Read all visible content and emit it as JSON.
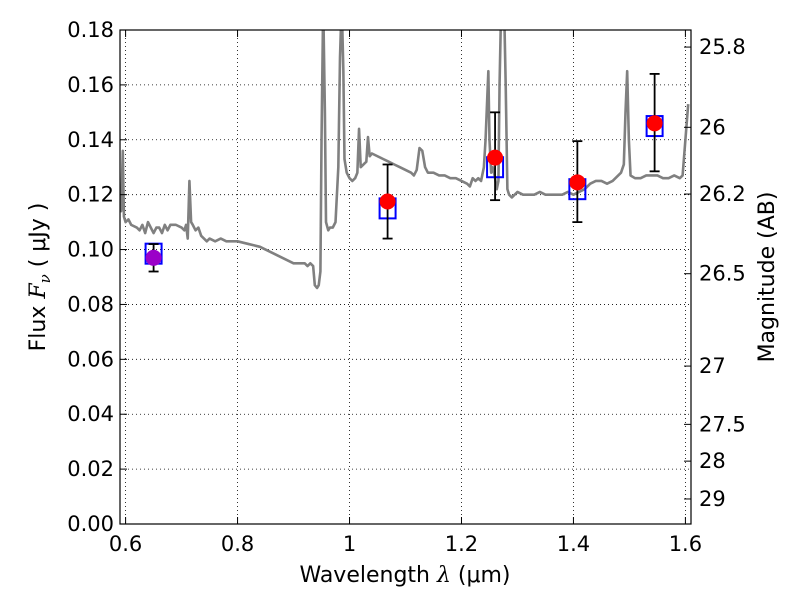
{
  "chart_data": {
    "type": "scatter",
    "xlabel": {
      "prefix": "Wavelength  ",
      "symbol": "λ",
      "unit": "(μm)"
    },
    "ylabel": {
      "prefix": "Flux  ",
      "symbol": "F",
      "subscript": "ν",
      "unit": "( μJy )"
    },
    "y2label": "Magnitude (AB)",
    "xlim": [
      0.59,
      1.61
    ],
    "ylim": [
      0.0,
      0.18
    ],
    "grid": true,
    "x_ticks": [
      0.6,
      0.8,
      1.0,
      1.2,
      1.4,
      1.6
    ],
    "x_tick_labels": [
      "0.6",
      "0.8",
      "1",
      "1.2",
      "1.4",
      "1.6"
    ],
    "y_ticks": [
      0.0,
      0.02,
      0.04,
      0.06,
      0.08,
      0.1,
      0.12,
      0.14,
      0.16,
      0.18
    ],
    "y_tick_labels": [
      "0.00",
      "0.02",
      "0.04",
      "0.06",
      "0.08",
      "0.10",
      "0.12",
      "0.14",
      "0.16",
      "0.18"
    ],
    "y2_ticks": [
      25.8,
      26,
      26.2,
      26.5,
      27,
      27.5,
      28,
      29
    ],
    "y2_tick_labels": [
      "25.8",
      "26",
      "26.2",
      "26.5",
      "27",
      "27.5",
      "28",
      "29"
    ],
    "colors": {
      "spectrum": "#808080",
      "observed": "#ff0000",
      "observed_first": "#9b00c8",
      "model": "#0000ff",
      "errorbar": "#000000"
    },
    "spectrum": [
      [
        0.59,
        0.115
      ],
      [
        0.592,
        0.114
      ],
      [
        0.595,
        0.136
      ],
      [
        0.597,
        0.112
      ],
      [
        0.6,
        0.11
      ],
      [
        0.605,
        0.111
      ],
      [
        0.61,
        0.109
      ],
      [
        0.62,
        0.108
      ],
      [
        0.625,
        0.107
      ],
      [
        0.63,
        0.109
      ],
      [
        0.635,
        0.106
      ],
      [
        0.64,
        0.11
      ],
      [
        0.645,
        0.108
      ],
      [
        0.65,
        0.106
      ],
      [
        0.655,
        0.108
      ],
      [
        0.66,
        0.108
      ],
      [
        0.665,
        0.106
      ],
      [
        0.67,
        0.109
      ],
      [
        0.675,
        0.107
      ],
      [
        0.68,
        0.109
      ],
      [
        0.69,
        0.109
      ],
      [
        0.7,
        0.108
      ],
      [
        0.705,
        0.107
      ],
      [
        0.708,
        0.109
      ],
      [
        0.711,
        0.104
      ],
      [
        0.714,
        0.125
      ],
      [
        0.717,
        0.11
      ],
      [
        0.72,
        0.109
      ],
      [
        0.725,
        0.107
      ],
      [
        0.73,
        0.108
      ],
      [
        0.735,
        0.105
      ],
      [
        0.74,
        0.104
      ],
      [
        0.745,
        0.103
      ],
      [
        0.75,
        0.104
      ],
      [
        0.76,
        0.103
      ],
      [
        0.77,
        0.104
      ],
      [
        0.78,
        0.103
      ],
      [
        0.8,
        0.103
      ],
      [
        0.82,
        0.102
      ],
      [
        0.84,
        0.101
      ],
      [
        0.85,
        0.1
      ],
      [
        0.86,
        0.099
      ],
      [
        0.87,
        0.098
      ],
      [
        0.88,
        0.097
      ],
      [
        0.89,
        0.096
      ],
      [
        0.9,
        0.095
      ],
      [
        0.92,
        0.095
      ],
      [
        0.925,
        0.094
      ],
      [
        0.93,
        0.095
      ],
      [
        0.935,
        0.094
      ],
      [
        0.938,
        0.087
      ],
      [
        0.942,
        0.086
      ],
      [
        0.945,
        0.087
      ],
      [
        0.948,
        0.092
      ],
      [
        0.95,
        0.14
      ],
      [
        0.953,
        0.19
      ],
      [
        0.956,
        0.15
      ],
      [
        0.958,
        0.11
      ],
      [
        0.962,
        0.107
      ],
      [
        0.965,
        0.108
      ],
      [
        0.97,
        0.108
      ],
      [
        0.975,
        0.11
      ],
      [
        0.98,
        0.13
      ],
      [
        0.983,
        0.17
      ],
      [
        0.986,
        0.19
      ],
      [
        0.989,
        0.165
      ],
      [
        0.991,
        0.133
      ],
      [
        0.995,
        0.128
      ],
      [
        1.0,
        0.126
      ],
      [
        1.005,
        0.125
      ],
      [
        1.01,
        0.126
      ],
      [
        1.014,
        0.128
      ],
      [
        1.017,
        0.144
      ],
      [
        1.02,
        0.13
      ],
      [
        1.025,
        0.131
      ],
      [
        1.03,
        0.132
      ],
      [
        1.033,
        0.141
      ],
      [
        1.036,
        0.134
      ],
      [
        1.04,
        0.135
      ],
      [
        1.05,
        0.134
      ],
      [
        1.06,
        0.133
      ],
      [
        1.07,
        0.132
      ],
      [
        1.08,
        0.131
      ],
      [
        1.09,
        0.13
      ],
      [
        1.1,
        0.129
      ],
      [
        1.11,
        0.128
      ],
      [
        1.115,
        0.127
      ],
      [
        1.12,
        0.129
      ],
      [
        1.125,
        0.137
      ],
      [
        1.13,
        0.136
      ],
      [
        1.135,
        0.13
      ],
      [
        1.14,
        0.128
      ],
      [
        1.15,
        0.128
      ],
      [
        1.16,
        0.127
      ],
      [
        1.17,
        0.127
      ],
      [
        1.18,
        0.126
      ],
      [
        1.19,
        0.126
      ],
      [
        1.2,
        0.125
      ],
      [
        1.21,
        0.124
      ],
      [
        1.215,
        0.123
      ],
      [
        1.22,
        0.126
      ],
      [
        1.225,
        0.125
      ],
      [
        1.23,
        0.126
      ],
      [
        1.235,
        0.125
      ],
      [
        1.24,
        0.13
      ],
      [
        1.243,
        0.14
      ],
      [
        1.246,
        0.155
      ],
      [
        1.248,
        0.165
      ],
      [
        1.25,
        0.14
      ],
      [
        1.253,
        0.128
      ],
      [
        1.256,
        0.13
      ],
      [
        1.26,
        0.126
      ],
      [
        1.263,
        0.122
      ],
      [
        1.266,
        0.125
      ],
      [
        1.268,
        0.16
      ],
      [
        1.271,
        0.19
      ],
      [
        1.275,
        0.2
      ],
      [
        1.279,
        0.16
      ],
      [
        1.282,
        0.122
      ],
      [
        1.285,
        0.12
      ],
      [
        1.29,
        0.119
      ],
      [
        1.3,
        0.121
      ],
      [
        1.31,
        0.12
      ],
      [
        1.32,
        0.12
      ],
      [
        1.33,
        0.12
      ],
      [
        1.34,
        0.121
      ],
      [
        1.35,
        0.12
      ],
      [
        1.36,
        0.12
      ],
      [
        1.37,
        0.12
      ],
      [
        1.38,
        0.12
      ],
      [
        1.39,
        0.121
      ],
      [
        1.4,
        0.12
      ],
      [
        1.41,
        0.121
      ],
      [
        1.42,
        0.122
      ],
      [
        1.43,
        0.124
      ],
      [
        1.44,
        0.125
      ],
      [
        1.45,
        0.125
      ],
      [
        1.46,
        0.124
      ],
      [
        1.47,
        0.125
      ],
      [
        1.48,
        0.127
      ],
      [
        1.485,
        0.128
      ],
      [
        1.49,
        0.131
      ],
      [
        1.493,
        0.15
      ],
      [
        1.496,
        0.165
      ],
      [
        1.499,
        0.14
      ],
      [
        1.502,
        0.127
      ],
      [
        1.51,
        0.126
      ],
      [
        1.52,
        0.126
      ],
      [
        1.53,
        0.127
      ],
      [
        1.54,
        0.127
      ],
      [
        1.55,
        0.127
      ],
      [
        1.56,
        0.126
      ],
      [
        1.57,
        0.126
      ],
      [
        1.58,
        0.127
      ],
      [
        1.59,
        0.126
      ],
      [
        1.595,
        0.127
      ],
      [
        1.6,
        0.14
      ],
      [
        1.605,
        0.153
      ]
    ],
    "observed": [
      {
        "x": 0.65,
        "y": 0.097,
        "err_low": 0.092,
        "err_high": 0.102
      },
      {
        "x": 1.068,
        "y": 0.1175,
        "err_low": 0.104,
        "err_high": 0.131
      },
      {
        "x": 1.26,
        "y": 0.1335,
        "err_low": 0.118,
        "err_high": 0.15
      },
      {
        "x": 1.407,
        "y": 0.1245,
        "err_low": 0.11,
        "err_high": 0.1395
      },
      {
        "x": 1.545,
        "y": 0.146,
        "err_low": 0.1285,
        "err_high": 0.164
      }
    ],
    "model": [
      {
        "x": 0.65,
        "y": 0.0985
      },
      {
        "x": 1.068,
        "y": 0.115
      },
      {
        "x": 1.26,
        "y": 0.13
      },
      {
        "x": 1.407,
        "y": 0.122
      },
      {
        "x": 1.545,
        "y": 0.145
      }
    ]
  }
}
